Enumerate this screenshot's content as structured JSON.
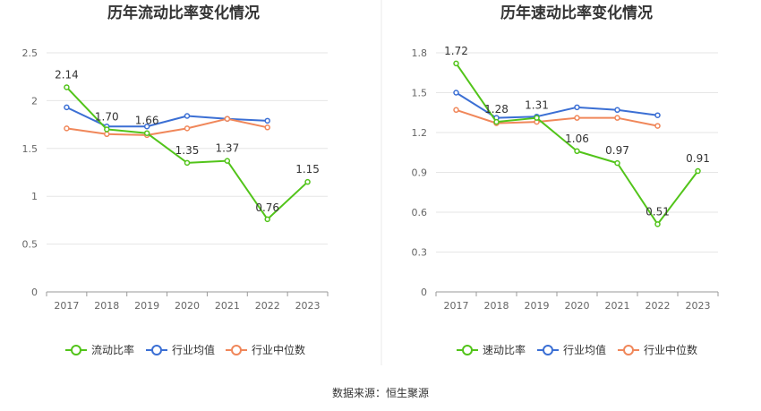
{
  "source_text": "数据来源：恒生聚源",
  "chart_data": [
    {
      "type": "line",
      "title": "历年流动比率变化情况",
      "categories": [
        "2017",
        "2018",
        "2019",
        "2020",
        "2021",
        "2022",
        "2023"
      ],
      "ylim": [
        0,
        2.5
      ],
      "yticks": [
        "0",
        "0.5",
        "1",
        "1.5",
        "2",
        "2.5"
      ],
      "ytick_values": [
        0,
        0.5,
        1,
        1.5,
        2,
        2.5
      ],
      "grid": true,
      "legend_position": "bottom",
      "series": [
        {
          "name": "流动比率",
          "color": "#52c41a",
          "labeled": true,
          "values": [
            2.14,
            1.7,
            1.66,
            1.35,
            1.37,
            0.76,
            1.15
          ],
          "labels": [
            "2.14",
            "1.70",
            "1.66",
            "1.35",
            "1.37",
            "0.76",
            "1.15"
          ]
        },
        {
          "name": "行业均值",
          "color": "#3b6fd4",
          "labeled": false,
          "values": [
            1.93,
            1.73,
            1.73,
            1.84,
            1.81,
            1.79,
            null
          ]
        },
        {
          "name": "行业中位数",
          "color": "#f0875a",
          "labeled": false,
          "values": [
            1.71,
            1.65,
            1.64,
            1.71,
            1.81,
            1.72,
            null
          ]
        }
      ]
    },
    {
      "type": "line",
      "title": "历年速动比率变化情况",
      "categories": [
        "2017",
        "2018",
        "2019",
        "2020",
        "2021",
        "2022",
        "2023"
      ],
      "ylim": [
        0,
        1.8
      ],
      "yticks": [
        "0",
        "0.3",
        "0.6",
        "0.9",
        "1.2",
        "1.5",
        "1.8"
      ],
      "ytick_values": [
        0,
        0.3,
        0.6,
        0.9,
        1.2,
        1.5,
        1.8
      ],
      "grid": true,
      "legend_position": "bottom",
      "series": [
        {
          "name": "速动比率",
          "color": "#52c41a",
          "labeled": true,
          "values": [
            1.72,
            1.28,
            1.31,
            1.06,
            0.97,
            0.51,
            0.91
          ],
          "labels": [
            "1.72",
            "1.28",
            "1.31",
            "1.06",
            "0.97",
            "0.51",
            "0.91"
          ]
        },
        {
          "name": "行业均值",
          "color": "#3b6fd4",
          "labeled": false,
          "values": [
            1.5,
            1.31,
            1.32,
            1.39,
            1.37,
            1.33,
            null
          ]
        },
        {
          "name": "行业中位数",
          "color": "#f0875a",
          "labeled": false,
          "values": [
            1.37,
            1.27,
            1.28,
            1.31,
            1.31,
            1.25,
            null
          ]
        }
      ]
    }
  ]
}
